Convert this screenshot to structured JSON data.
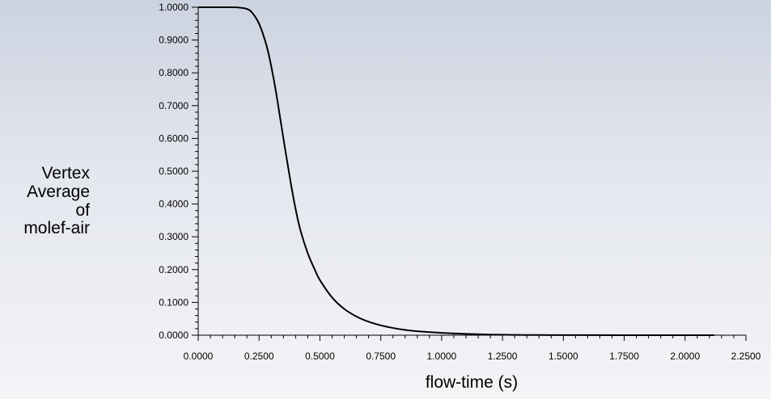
{
  "chart_data": {
    "type": "line",
    "xlabel": "flow-time (s)",
    "ylabel_lines": [
      "Vertex",
      "Average",
      "of",
      "molef-air"
    ],
    "xlim": [
      0,
      2.25
    ],
    "ylim": [
      0,
      1
    ],
    "x_ticks": [
      "0.0000",
      "0.2500",
      "0.5000",
      "0.7500",
      "1.0000",
      "1.2500",
      "1.5000",
      "1.7500",
      "2.0000",
      "2.2500"
    ],
    "y_ticks": [
      "0.0000",
      "0.1000",
      "0.2000",
      "0.3000",
      "0.4000",
      "0.5000",
      "0.6000",
      "0.7000",
      "0.8000",
      "0.9000",
      "1.0000"
    ],
    "grid": false,
    "series": [
      {
        "color": "#000000",
        "x": [
          0.0,
          0.1,
          0.15,
          0.18,
          0.2,
          0.22,
          0.25,
          0.28,
          0.3,
          0.32,
          0.35,
          0.38,
          0.4,
          0.42,
          0.45,
          0.48,
          0.5,
          0.55,
          0.6,
          0.65,
          0.7,
          0.75,
          0.8,
          0.85,
          0.9,
          1.0,
          1.1,
          1.2,
          1.3,
          1.4,
          1.5,
          1.6,
          1.8,
          2.0,
          2.12
        ],
        "y": [
          1.0,
          1.0,
          1.0,
          0.998,
          0.995,
          0.985,
          0.95,
          0.885,
          0.82,
          0.74,
          0.6,
          0.465,
          0.385,
          0.32,
          0.25,
          0.198,
          0.168,
          0.115,
          0.08,
          0.057,
          0.041,
          0.03,
          0.022,
          0.016,
          0.012,
          0.007,
          0.004,
          0.002,
          0.001,
          0.0005,
          0.0003,
          0.0002,
          0.0001,
          0.0,
          0.0
        ]
      }
    ]
  }
}
